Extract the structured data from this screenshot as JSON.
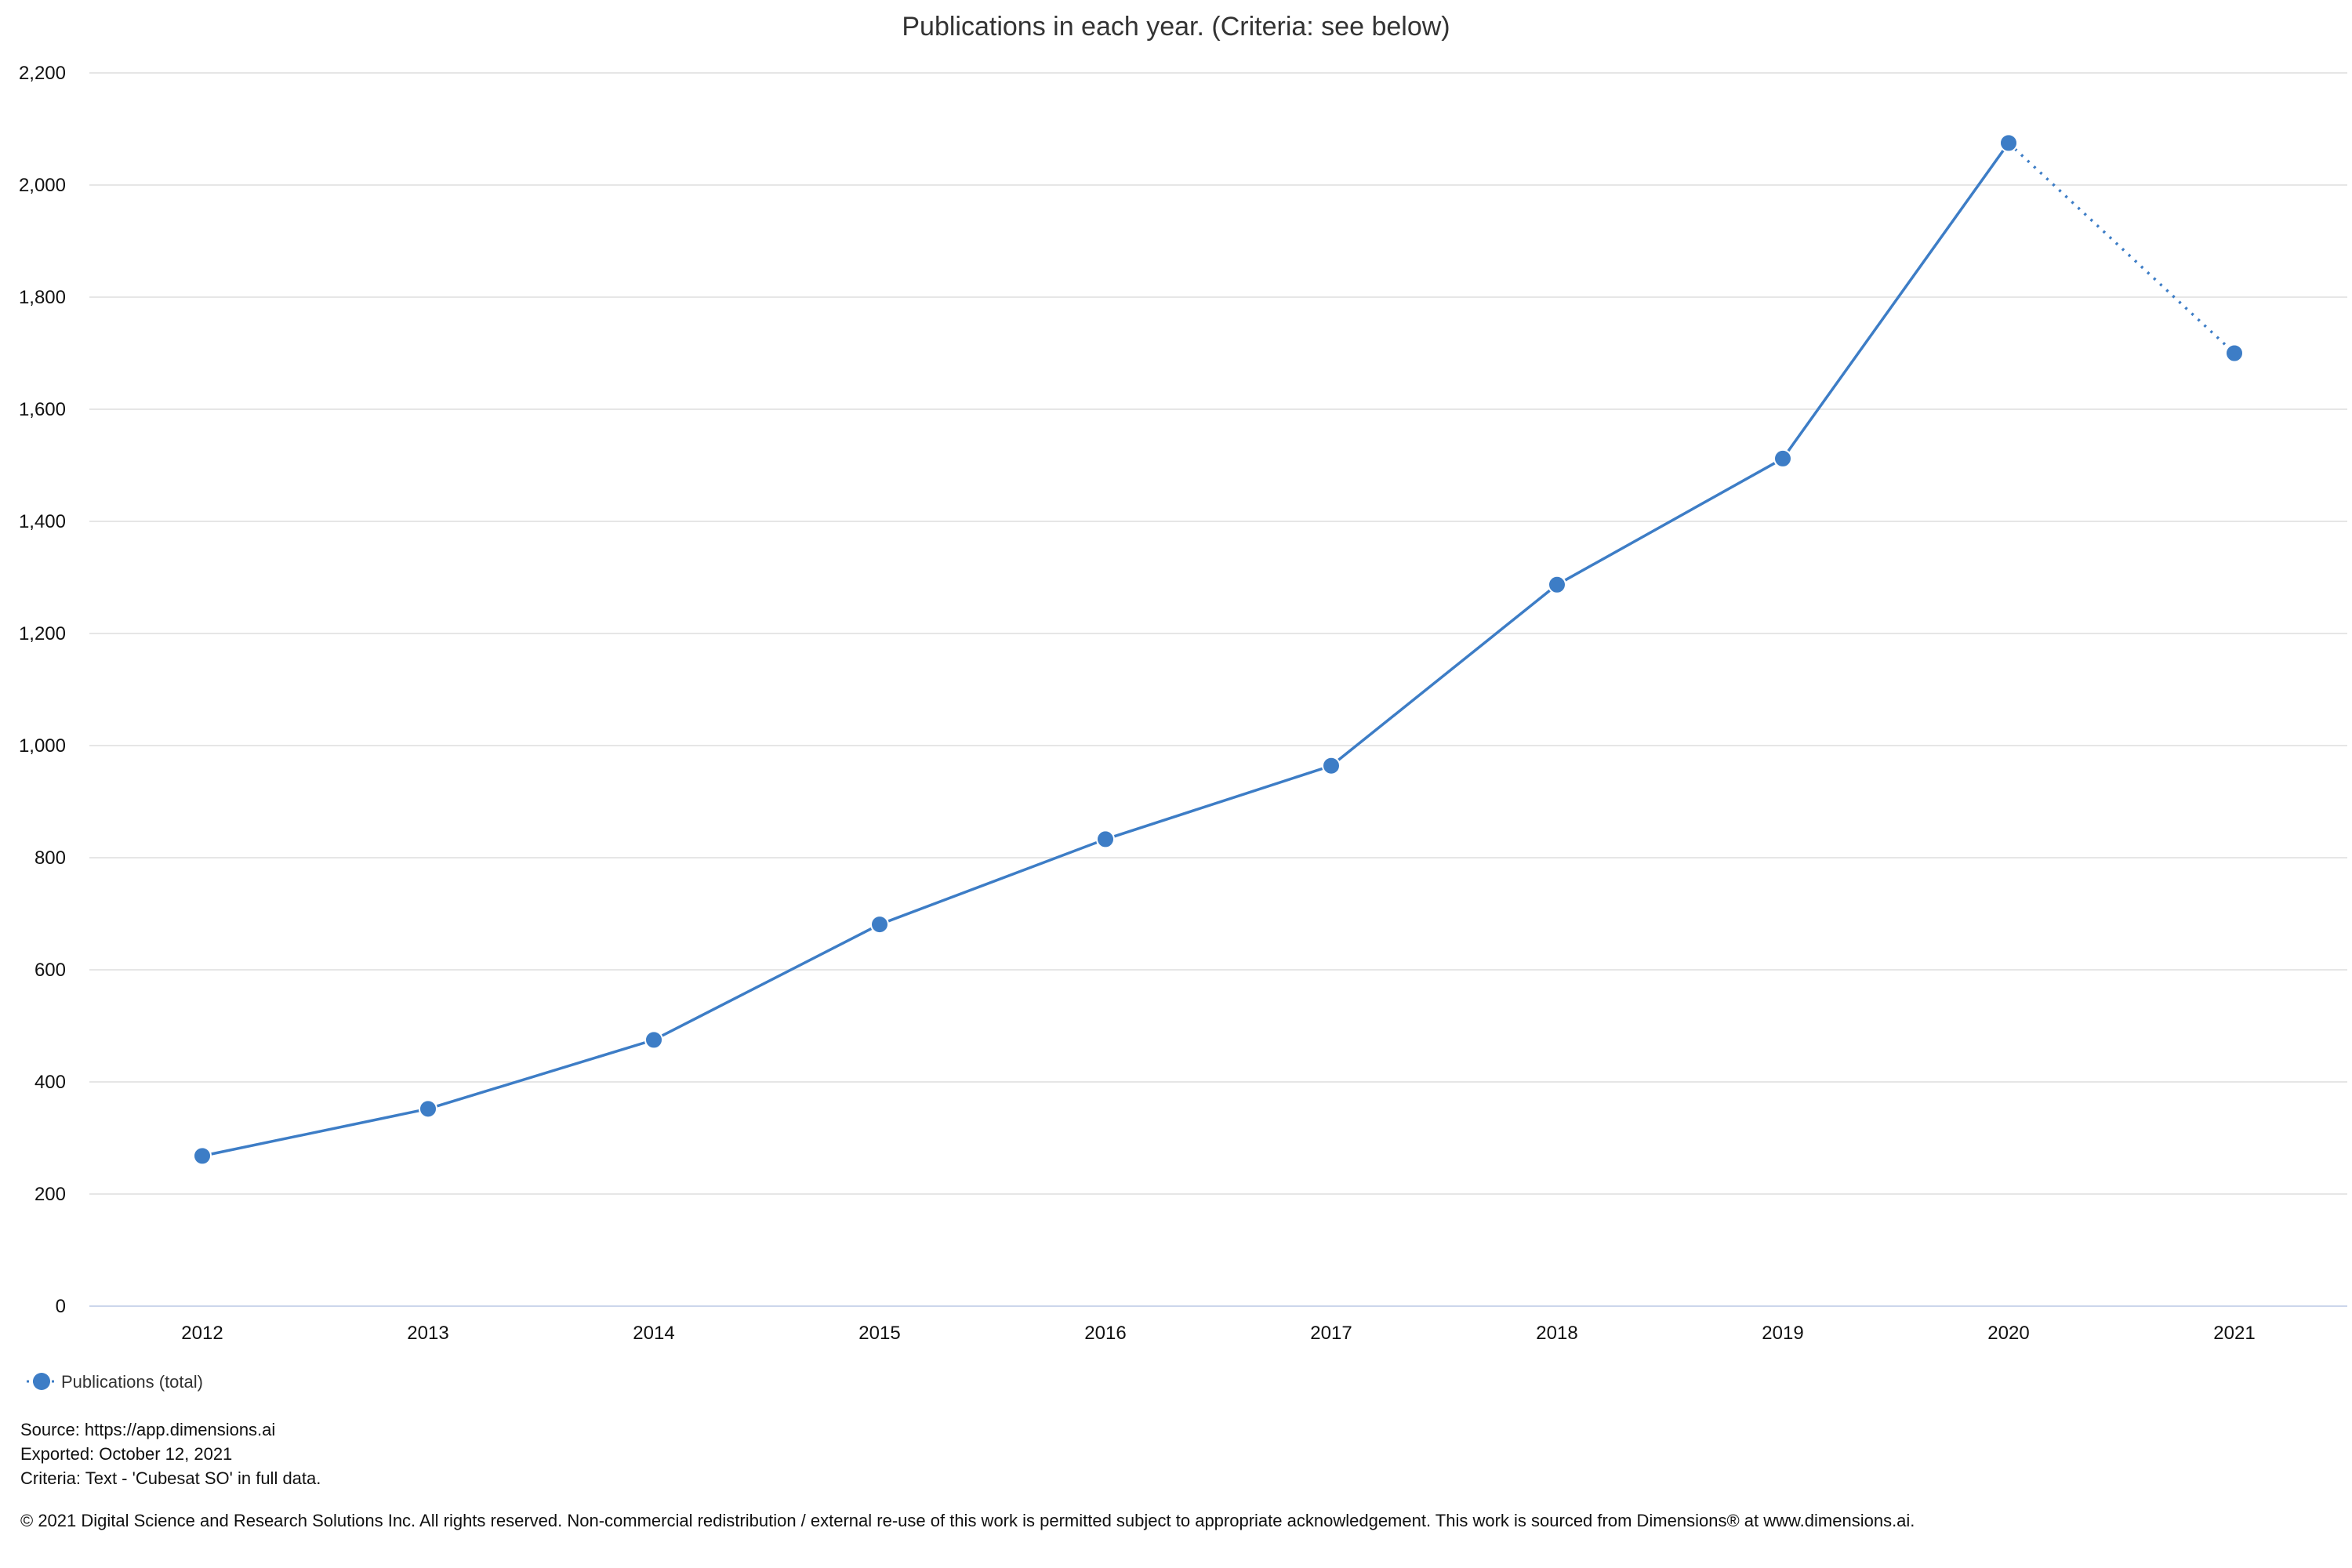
{
  "chart_data": {
    "type": "line",
    "title": "Publications in each year. (Criteria: see below)",
    "xlabel": "",
    "ylabel": "",
    "categories": [
      "2012",
      "2013",
      "2014",
      "2015",
      "2016",
      "2017",
      "2018",
      "2019",
      "2020",
      "2021"
    ],
    "series": [
      {
        "name": "Publications (total)",
        "values": [
          268,
          352,
          475,
          681,
          833,
          964,
          1287,
          1512,
          2075,
          1700
        ],
        "color": "#3d7dc6",
        "dotted_last_segment": true
      }
    ],
    "ylim": [
      0,
      2200
    ],
    "yticks": [
      0,
      200,
      400,
      600,
      800,
      1000,
      1200,
      1400,
      1600,
      1800,
      2000,
      2200
    ],
    "ytick_labels": [
      "0",
      "200",
      "400",
      "600",
      "800",
      "1,000",
      "1,200",
      "1,400",
      "1,600",
      "1,800",
      "2,000",
      "2,200"
    ],
    "grid": true,
    "legend": "bottom-left",
    "colors": {
      "line": "#3d7dc6",
      "grid": "#e6e6e6",
      "axis": "#ccd6eb"
    }
  },
  "footer": {
    "source": "Source: https://app.dimensions.ai",
    "exported": "Exported: October 12, 2021",
    "criteria": "Criteria: Text - 'Cubesat SO' in full data.",
    "copyright": "© 2021 Digital Science and Research Solutions Inc. All rights reserved. Non-commercial redistribution / external re-use of this work is permitted subject to appropriate acknowledgement. This work is sourced from Dimensions® at www.dimensions.ai."
  }
}
